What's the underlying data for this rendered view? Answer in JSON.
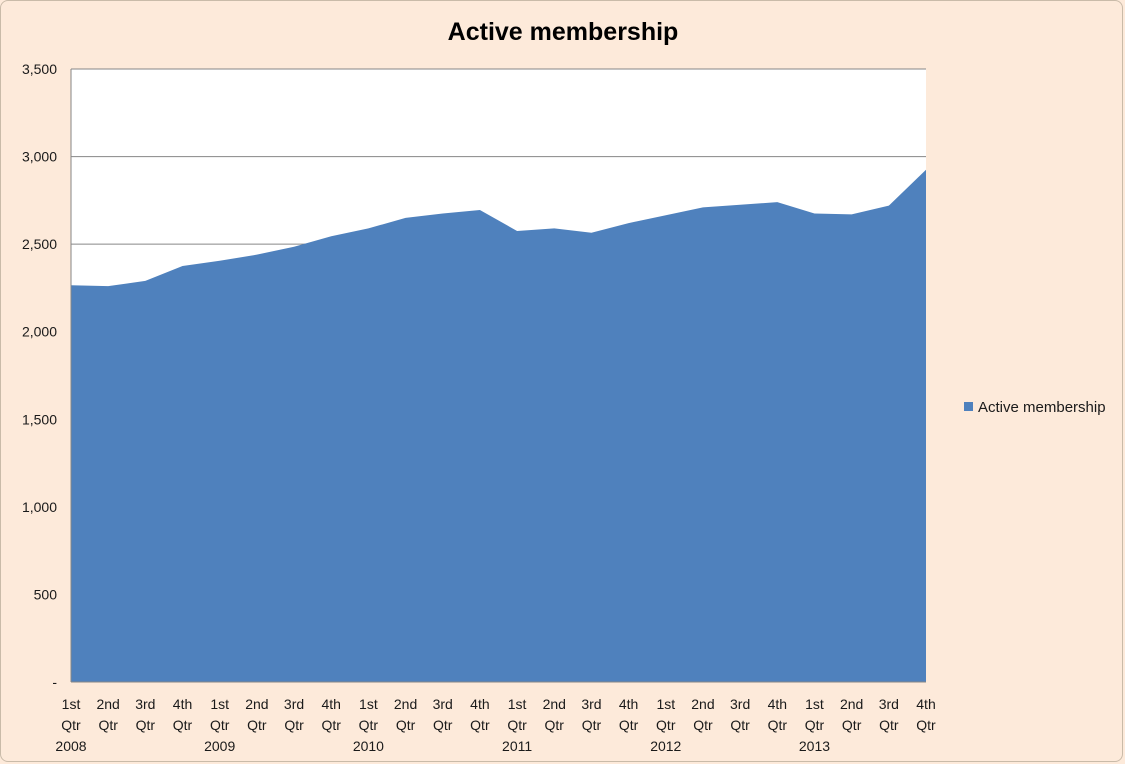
{
  "chart_data": {
    "type": "area",
    "title": "Active membership",
    "xlabel": "",
    "ylabel": "",
    "ylim": [
      0,
      3500
    ],
    "y_ticks": [
      0,
      500,
      1000,
      1500,
      2000,
      2500,
      3000,
      3500
    ],
    "y_tick_labels": [
      "-",
      "500",
      "1,000",
      "1,500",
      "2,000",
      "2,500",
      "3,000",
      "3,500"
    ],
    "grid": true,
    "legend_position": "right",
    "categories": [
      {
        "quarter": "1st Qtr",
        "year": "2008"
      },
      {
        "quarter": "2nd Qtr",
        "year": ""
      },
      {
        "quarter": "3rd Qtr",
        "year": ""
      },
      {
        "quarter": "4th Qtr",
        "year": ""
      },
      {
        "quarter": "1st Qtr",
        "year": "2009"
      },
      {
        "quarter": "2nd Qtr",
        "year": ""
      },
      {
        "quarter": "3rd Qtr",
        "year": ""
      },
      {
        "quarter": "4th Qtr",
        "year": ""
      },
      {
        "quarter": "1st Qtr",
        "year": "2010"
      },
      {
        "quarter": "2nd Qtr",
        "year": ""
      },
      {
        "quarter": "3rd Qtr",
        "year": ""
      },
      {
        "quarter": "4th Qtr",
        "year": ""
      },
      {
        "quarter": "1st Qtr",
        "year": "2011"
      },
      {
        "quarter": "2nd Qtr",
        "year": ""
      },
      {
        "quarter": "3rd Qtr",
        "year": ""
      },
      {
        "quarter": "4th Qtr",
        "year": ""
      },
      {
        "quarter": "1st Qtr",
        "year": "2012"
      },
      {
        "quarter": "2nd Qtr",
        "year": ""
      },
      {
        "quarter": "3rd Qtr",
        "year": ""
      },
      {
        "quarter": "4th Qtr",
        "year": ""
      },
      {
        "quarter": "1st Qtr",
        "year": "2013"
      },
      {
        "quarter": "2nd Qtr",
        "year": ""
      },
      {
        "quarter": "3rd Qtr",
        "year": ""
      },
      {
        "quarter": "4th Qtr",
        "year": ""
      }
    ],
    "series": [
      {
        "name": "Active membership",
        "color": "#4f81bd",
        "values": [
          2265,
          2260,
          2290,
          2375,
          2405,
          2440,
          2485,
          2545,
          2590,
          2650,
          2675,
          2695,
          2575,
          2590,
          2565,
          2620,
          2665,
          2710,
          2725,
          2740,
          2675,
          2670,
          2720,
          2925
        ]
      }
    ]
  }
}
